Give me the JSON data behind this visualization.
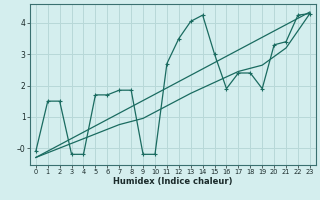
{
  "xlabel": "Humidex (Indice chaleur)",
  "bg_color": "#d4eeee",
  "line_color": "#1a6b60",
  "grid_color": "#b8d8d8",
  "xlim": [
    -0.5,
    23.5
  ],
  "ylim": [
    -0.55,
    4.6
  ],
  "xticks": [
    0,
    1,
    2,
    3,
    4,
    5,
    6,
    7,
    8,
    9,
    10,
    11,
    12,
    13,
    14,
    15,
    16,
    17,
    18,
    19,
    20,
    21,
    22,
    23
  ],
  "yticks": [
    0,
    1,
    2,
    3,
    4
  ],
  "ytick_labels": [
    "–0",
    "1",
    "2",
    "3",
    "4"
  ],
  "series1_x": [
    0,
    1,
    2,
    3,
    4,
    5,
    6,
    7,
    8,
    9,
    10,
    11,
    12,
    13,
    14,
    15,
    16,
    17,
    18,
    19,
    20,
    21,
    22,
    23
  ],
  "series1_y": [
    -0.1,
    1.5,
    1.5,
    -0.2,
    -0.2,
    1.7,
    1.7,
    1.85,
    1.85,
    -0.2,
    -0.2,
    2.7,
    3.5,
    4.05,
    4.25,
    3.0,
    1.9,
    2.4,
    2.4,
    1.9,
    3.3,
    3.4,
    4.25,
    4.3
  ],
  "series2_x": [
    0,
    23
  ],
  "series2_y": [
    -0.3,
    4.35
  ],
  "series3_x": [
    0,
    3,
    5,
    7,
    9,
    11,
    13,
    15,
    17,
    19,
    21,
    23
  ],
  "series3_y": [
    -0.3,
    0.15,
    0.45,
    0.75,
    0.95,
    1.35,
    1.75,
    2.1,
    2.45,
    2.65,
    3.2,
    4.3
  ]
}
